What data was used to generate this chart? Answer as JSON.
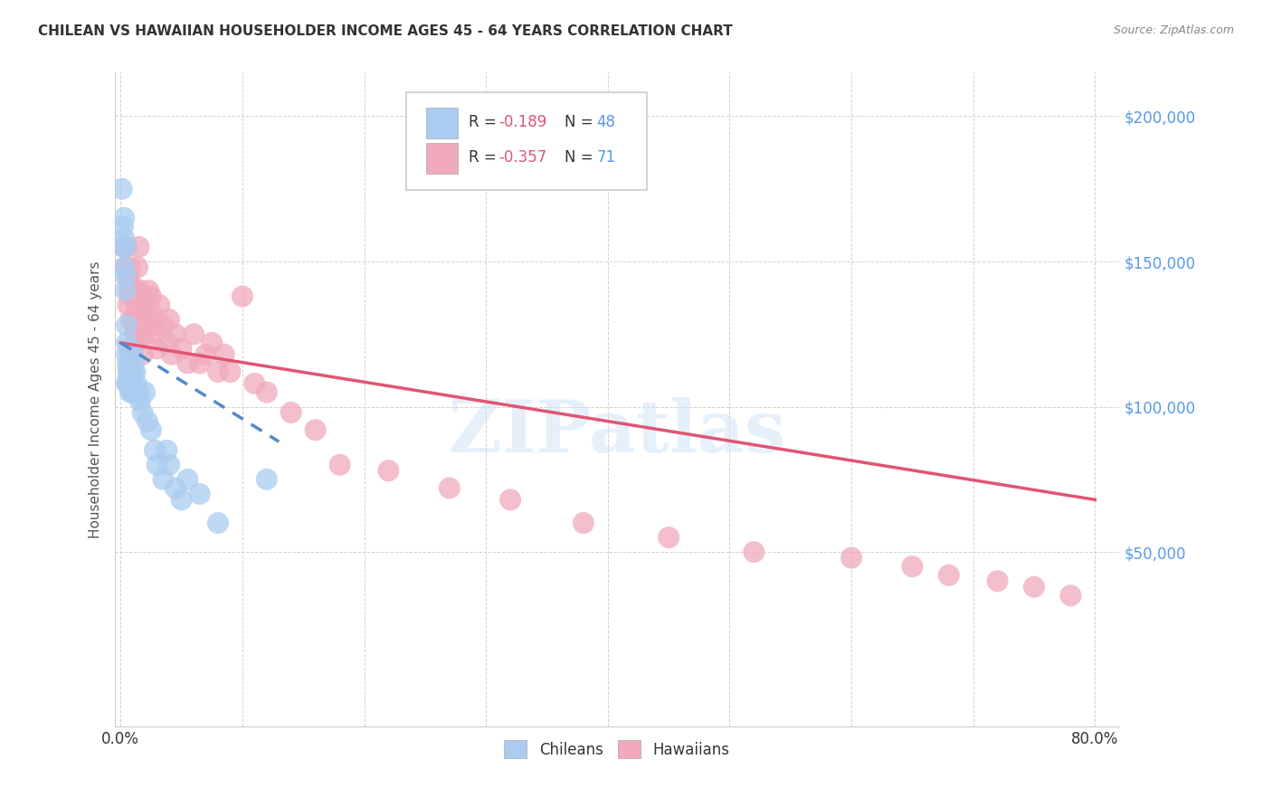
{
  "title": "CHILEAN VS HAWAIIAN HOUSEHOLDER INCOME AGES 45 - 64 YEARS CORRELATION CHART",
  "source": "Source: ZipAtlas.com",
  "ylabel": "Householder Income Ages 45 - 64 years",
  "xlabel_ticks": [
    "0.0%",
    "",
    "",
    "",
    "",
    "",
    "",
    "",
    "80.0%"
  ],
  "ytick_labels": [
    "$50,000",
    "$100,000",
    "$150,000",
    "$200,000"
  ],
  "ytick_values": [
    50000,
    100000,
    150000,
    200000
  ],
  "xlim": [
    -0.005,
    0.82
  ],
  "ylim": [
    -10000,
    215000
  ],
  "chilean_color": "#aaccf0",
  "hawaiian_color": "#f0aabb",
  "chilean_line_color": "#5588cc",
  "hawaiian_line_color": "#e05575",
  "watermark": "ZIPatlas",
  "chilean_x": [
    0.001,
    0.002,
    0.002,
    0.003,
    0.003,
    0.003,
    0.004,
    0.004,
    0.004,
    0.005,
    0.005,
    0.005,
    0.005,
    0.006,
    0.006,
    0.006,
    0.006,
    0.007,
    0.007,
    0.007,
    0.008,
    0.008,
    0.009,
    0.009,
    0.01,
    0.01,
    0.01,
    0.011,
    0.011,
    0.012,
    0.013,
    0.015,
    0.016,
    0.018,
    0.02,
    0.022,
    0.025,
    0.028,
    0.03,
    0.035,
    0.038,
    0.04,
    0.045,
    0.05,
    0.055,
    0.065,
    0.08,
    0.12
  ],
  "chilean_y": [
    175000,
    162000,
    155000,
    158000,
    148000,
    165000,
    145000,
    140000,
    155000,
    128000,
    122000,
    118000,
    108000,
    115000,
    113000,
    110000,
    108000,
    120000,
    112000,
    108000,
    115000,
    105000,
    110000,
    105000,
    118000,
    112000,
    108000,
    115000,
    105000,
    112000,
    108000,
    105000,
    102000,
    98000,
    105000,
    95000,
    92000,
    85000,
    80000,
    75000,
    85000,
    80000,
    72000,
    68000,
    75000,
    70000,
    60000,
    75000
  ],
  "hawaiian_x": [
    0.003,
    0.004,
    0.005,
    0.006,
    0.006,
    0.007,
    0.008,
    0.008,
    0.009,
    0.009,
    0.01,
    0.01,
    0.011,
    0.011,
    0.012,
    0.012,
    0.013,
    0.013,
    0.014,
    0.014,
    0.015,
    0.015,
    0.016,
    0.016,
    0.017,
    0.018,
    0.018,
    0.019,
    0.02,
    0.021,
    0.022,
    0.023,
    0.024,
    0.025,
    0.026,
    0.027,
    0.028,
    0.03,
    0.032,
    0.035,
    0.038,
    0.04,
    0.042,
    0.045,
    0.05,
    0.055,
    0.06,
    0.065,
    0.07,
    0.075,
    0.08,
    0.085,
    0.09,
    0.1,
    0.11,
    0.12,
    0.14,
    0.16,
    0.18,
    0.22,
    0.27,
    0.32,
    0.38,
    0.45,
    0.52,
    0.6,
    0.65,
    0.68,
    0.72,
    0.75,
    0.78
  ],
  "hawaiian_y": [
    155000,
    148000,
    155000,
    135000,
    145000,
    140000,
    148000,
    138000,
    130000,
    142000,
    130000,
    120000,
    140000,
    128000,
    138000,
    125000,
    135000,
    122000,
    148000,
    138000,
    155000,
    130000,
    140000,
    125000,
    135000,
    128000,
    118000,
    132000,
    125000,
    138000,
    130000,
    140000,
    128000,
    138000,
    132000,
    128000,
    125000,
    120000,
    135000,
    128000,
    122000,
    130000,
    118000,
    125000,
    120000,
    115000,
    125000,
    115000,
    118000,
    122000,
    112000,
    118000,
    112000,
    138000,
    108000,
    105000,
    98000,
    92000,
    80000,
    78000,
    72000,
    68000,
    60000,
    55000,
    50000,
    48000,
    45000,
    42000,
    40000,
    38000,
    35000
  ],
  "chi_line_x0": 0.0,
  "chi_line_x1": 0.13,
  "chi_line_y0": 122000,
  "chi_line_y1": 88000,
  "haw_line_x0": 0.0,
  "haw_line_x1": 0.8,
  "haw_line_y0": 122000,
  "haw_line_y1": 68000
}
